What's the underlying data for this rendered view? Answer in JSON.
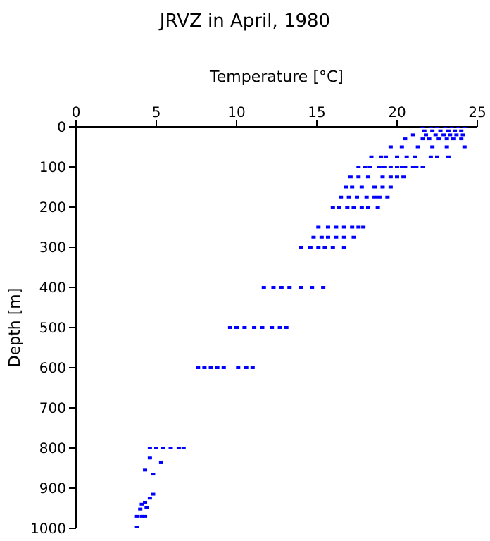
{
  "chart_data": {
    "type": "scatter",
    "title": "JRVZ in April, 1980",
    "xlabel": "Temperature [°C]",
    "ylabel": "Depth [m]",
    "xlim": [
      0,
      25
    ],
    "xticks": [
      0,
      5,
      10,
      15,
      20,
      25
    ],
    "ylim": [
      1000,
      0
    ],
    "yticks": [
      0,
      100,
      200,
      300,
      400,
      500,
      600,
      700,
      800,
      900,
      1000
    ],
    "grid": false,
    "legend": false,
    "marker": "square",
    "series": [
      {
        "color": "#0000ff",
        "x": [
          21.6,
          22.1,
          22.5,
          23.0,
          23.4,
          23.8,
          24.2,
          21.7,
          22.2,
          22.7,
          23.2,
          23.6,
          24.0,
          21.0,
          21.8,
          22.4,
          22.9,
          23.3,
          23.7,
          24.1,
          20.5,
          21.6,
          22.0,
          22.6,
          23.1,
          23.5,
          24.0,
          19.6,
          20.3,
          21.3,
          22.2,
          23.1,
          24.2,
          18.4,
          19.0,
          19.3,
          20.0,
          20.6,
          21.1,
          22.1,
          22.5,
          23.2,
          17.6,
          18.0,
          18.3,
          18.9,
          19.2,
          19.6,
          20.0,
          20.3,
          20.5,
          21.0,
          21.2,
          21.6,
          17.1,
          17.6,
          18.2,
          19.1,
          19.6,
          20.0,
          20.4,
          16.8,
          17.2,
          17.8,
          18.6,
          19.1,
          19.6,
          16.5,
          17.0,
          17.5,
          18.1,
          18.6,
          18.9,
          19.4,
          16.0,
          16.4,
          16.9,
          17.3,
          17.8,
          18.2,
          18.8,
          15.1,
          15.7,
          16.2,
          16.7,
          17.2,
          17.6,
          17.9,
          14.8,
          15.3,
          15.7,
          16.2,
          16.7,
          17.3,
          14.0,
          14.6,
          15.1,
          15.5,
          16.0,
          16.7,
          11.7,
          12.3,
          12.8,
          13.3,
          14.0,
          14.7,
          15.4,
          9.6,
          10.0,
          10.5,
          11.1,
          11.6,
          12.2,
          12.7,
          13.1,
          7.6,
          8.0,
          8.4,
          8.8,
          9.2,
          10.1,
          10.6,
          11.0,
          4.6,
          5.0,
          5.4,
          5.9,
          6.4,
          6.7,
          4.6,
          5.3,
          4.3,
          4.8,
          4.8,
          4.6,
          4.3,
          4.1,
          4.4,
          4.0,
          3.8,
          4.1,
          4.3,
          3.8
        ],
        "values": [
          0,
          0,
          0,
          0,
          0,
          0,
          0,
          10,
          10,
          10,
          10,
          10,
          10,
          20,
          20,
          20,
          20,
          20,
          20,
          20,
          30,
          30,
          30,
          30,
          30,
          30,
          30,
          50,
          50,
          50,
          50,
          50,
          50,
          75,
          75,
          75,
          75,
          75,
          75,
          75,
          75,
          75,
          100,
          100,
          100,
          100,
          100,
          100,
          100,
          100,
          100,
          100,
          100,
          100,
          125,
          125,
          125,
          125,
          125,
          125,
          125,
          150,
          150,
          150,
          150,
          150,
          150,
          175,
          175,
          175,
          175,
          175,
          175,
          175,
          200,
          200,
          200,
          200,
          200,
          200,
          200,
          250,
          250,
          250,
          250,
          250,
          250,
          250,
          275,
          275,
          275,
          275,
          275,
          275,
          300,
          300,
          300,
          300,
          300,
          300,
          400,
          400,
          400,
          400,
          400,
          400,
          400,
          500,
          500,
          500,
          500,
          500,
          500,
          500,
          500,
          600,
          600,
          600,
          600,
          600,
          600,
          600,
          600,
          800,
          800,
          800,
          800,
          800,
          800,
          825,
          835,
          855,
          865,
          915,
          925,
          935,
          940,
          948,
          952,
          970,
          970,
          970,
          997
        ]
      }
    ]
  }
}
